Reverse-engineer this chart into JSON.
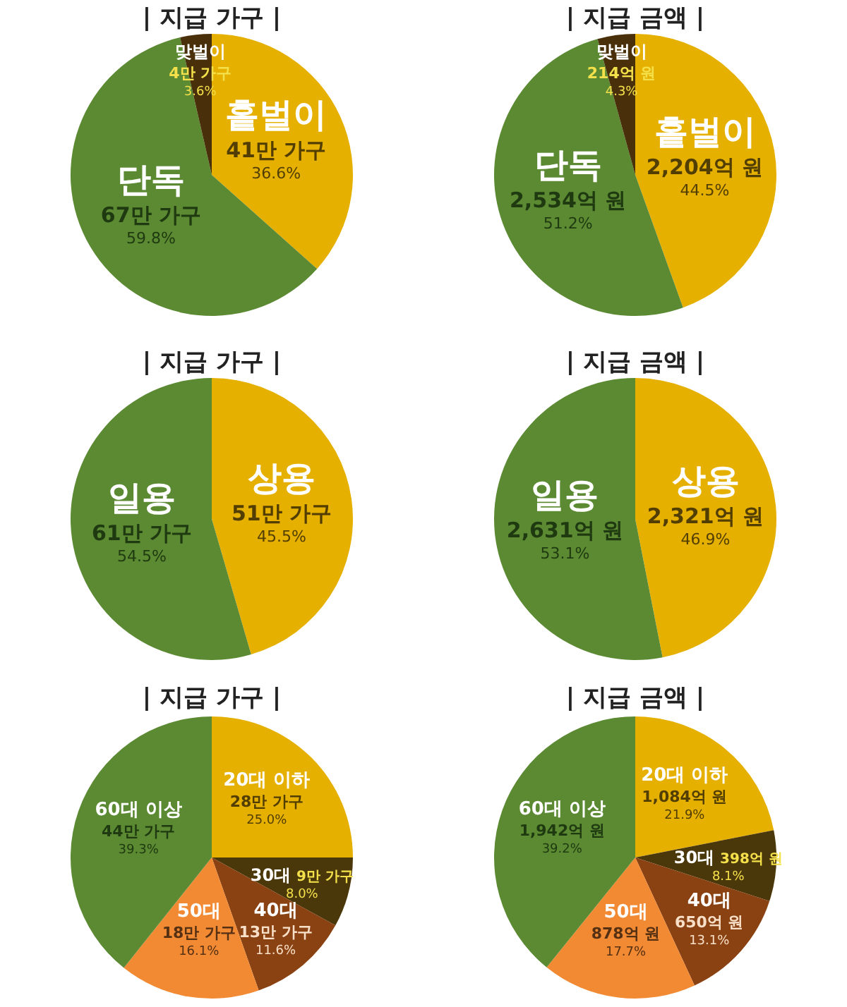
{
  "chart_data": [
    {
      "type": "pie",
      "title": "| 지급 가구 |",
      "categories": [
        "홑벌이",
        "단독",
        "맞벌이"
      ],
      "values": [
        36.6,
        59.8,
        3.6
      ],
      "colors": [
        "#e6b000",
        "#5b8a32",
        "#4a300a"
      ],
      "value_labels": [
        "41만 가구\n36.6%",
        "67만 가구\n59.8%",
        "4만 가구\n3.6%"
      ]
    },
    {
      "type": "pie",
      "title": "| 지급 금액 |",
      "categories": [
        "홑벌이",
        "단독",
        "맞벌이"
      ],
      "values": [
        44.5,
        51.2,
        4.3
      ],
      "colors": [
        "#e6b000",
        "#5b8a32",
        "#4a300a"
      ],
      "value_labels": [
        "2,204억 원\n44.5%",
        "2,534억 원\n51.2%",
        "214억 원\n4.3%"
      ]
    },
    {
      "type": "pie",
      "title": "| 지급 가구 |",
      "categories": [
        "상용",
        "일용"
      ],
      "values": [
        45.5,
        54.5
      ],
      "colors": [
        "#e6b000",
        "#5b8a32"
      ],
      "value_labels": [
        "51만 가구\n45.5%",
        "61만 가구\n54.5%"
      ]
    },
    {
      "type": "pie",
      "title": "| 지급 금액 |",
      "categories": [
        "상용",
        "일용"
      ],
      "values": [
        46.9,
        53.1
      ],
      "colors": [
        "#e6b000",
        "#5b8a32"
      ],
      "value_labels": [
        "2,321억 원\n46.9%",
        "2,631억 원\n53.1%"
      ]
    },
    {
      "type": "pie",
      "title": "| 지급 가구 |",
      "categories": [
        "20대 이하",
        "30대",
        "40대",
        "50대",
        "60대 이상"
      ],
      "values": [
        25.0,
        8.0,
        11.6,
        16.1,
        39.3
      ],
      "colors": [
        "#e6b000",
        "#4a380a",
        "#8a4212",
        "#f28a34",
        "#5b8a32"
      ],
      "value_labels": [
        "28만 가구\n25.0%",
        "9만 가구\n8.0%",
        "13만 가구\n11.6%",
        "18만 가구\n16.1%",
        "44만 가구\n39.3%"
      ]
    },
    {
      "type": "pie",
      "title": "| 지급 금액 |",
      "categories": [
        "20대 이하",
        "30대",
        "40대",
        "50대",
        "60대 이상"
      ],
      "values": [
        21.9,
        8.1,
        13.1,
        17.7,
        39.2
      ],
      "colors": [
        "#e6b000",
        "#4a380a",
        "#8a4212",
        "#f28a34",
        "#5b8a32"
      ],
      "value_labels": [
        "1,084억 원\n21.9%",
        "398억 원\n8.1%",
        "650억 원\n13.1%",
        "878억 원\n17.7%",
        "1,942억 원\n39.2%"
      ]
    }
  ]
}
